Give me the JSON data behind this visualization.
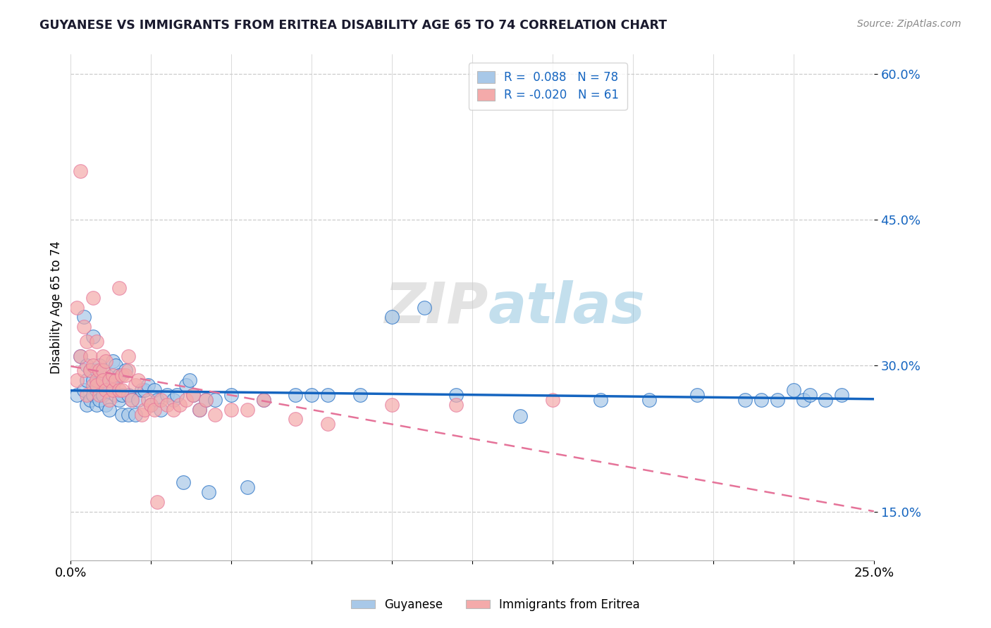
{
  "title": "GUYANESE VS IMMIGRANTS FROM ERITREA DISABILITY AGE 65 TO 74 CORRELATION CHART",
  "source_text": "Source: ZipAtlas.com",
  "ylabel": "Disability Age 65 to 74",
  "xlim": [
    0.0,
    0.25
  ],
  "ylim": [
    0.1,
    0.62
  ],
  "xticks": [
    0.0,
    0.025,
    0.05,
    0.075,
    0.1,
    0.125,
    0.15,
    0.175,
    0.2,
    0.225,
    0.25
  ],
  "yticks": [
    0.15,
    0.3,
    0.45,
    0.6
  ],
  "ytick_labels": [
    "15.0%",
    "30.0%",
    "45.0%",
    "60.0%"
  ],
  "xtick_labels": [
    "0.0%",
    "",
    "",
    "",
    "",
    "",
    "",
    "",
    "",
    "",
    "25.0%"
  ],
  "blue_color": "#a8c8e8",
  "pink_color": "#f4aaaa",
  "blue_line_color": "#1565C0",
  "pink_line_color": "#E57399",
  "R_blue": 0.088,
  "N_blue": 78,
  "R_pink": -0.02,
  "N_pink": 61,
  "watermark_zip": "ZIP",
  "watermark_atlas": "atlas",
  "legend_label_blue": "Guyanese",
  "legend_label_pink": "Immigrants from Eritrea",
  "blue_scatter_x": [
    0.002,
    0.003,
    0.004,
    0.004,
    0.005,
    0.005,
    0.005,
    0.006,
    0.006,
    0.007,
    0.007,
    0.007,
    0.008,
    0.008,
    0.008,
    0.009,
    0.009,
    0.01,
    0.01,
    0.01,
    0.011,
    0.011,
    0.012,
    0.012,
    0.013,
    0.013,
    0.014,
    0.014,
    0.015,
    0.015,
    0.016,
    0.016,
    0.017,
    0.018,
    0.018,
    0.019,
    0.02,
    0.021,
    0.022,
    0.023,
    0.024,
    0.025,
    0.026,
    0.027,
    0.028,
    0.03,
    0.032,
    0.033,
    0.035,
    0.036,
    0.037,
    0.038,
    0.04,
    0.042,
    0.043,
    0.045,
    0.05,
    0.055,
    0.06,
    0.07,
    0.075,
    0.08,
    0.09,
    0.1,
    0.11,
    0.12,
    0.14,
    0.165,
    0.18,
    0.195,
    0.21,
    0.215,
    0.22,
    0.225,
    0.228,
    0.23,
    0.235,
    0.24
  ],
  "blue_scatter_y": [
    0.27,
    0.31,
    0.275,
    0.35,
    0.26,
    0.285,
    0.3,
    0.265,
    0.295,
    0.27,
    0.285,
    0.33,
    0.26,
    0.275,
    0.295,
    0.265,
    0.3,
    0.27,
    0.285,
    0.295,
    0.26,
    0.28,
    0.255,
    0.285,
    0.28,
    0.305,
    0.27,
    0.3,
    0.265,
    0.29,
    0.25,
    0.27,
    0.295,
    0.25,
    0.27,
    0.265,
    0.25,
    0.265,
    0.275,
    0.275,
    0.28,
    0.26,
    0.275,
    0.265,
    0.255,
    0.27,
    0.265,
    0.27,
    0.18,
    0.28,
    0.285,
    0.27,
    0.255,
    0.265,
    0.17,
    0.265,
    0.27,
    0.175,
    0.265,
    0.27,
    0.27,
    0.27,
    0.27,
    0.35,
    0.36,
    0.27,
    0.248,
    0.265,
    0.265,
    0.27,
    0.265,
    0.265,
    0.265,
    0.275,
    0.265,
    0.27,
    0.265,
    0.27
  ],
  "pink_scatter_x": [
    0.002,
    0.002,
    0.003,
    0.003,
    0.004,
    0.004,
    0.005,
    0.005,
    0.006,
    0.006,
    0.007,
    0.007,
    0.007,
    0.008,
    0.008,
    0.008,
    0.009,
    0.009,
    0.01,
    0.01,
    0.01,
    0.011,
    0.011,
    0.012,
    0.012,
    0.013,
    0.013,
    0.014,
    0.015,
    0.015,
    0.016,
    0.016,
    0.017,
    0.018,
    0.018,
    0.019,
    0.02,
    0.021,
    0.022,
    0.023,
    0.024,
    0.025,
    0.026,
    0.027,
    0.028,
    0.03,
    0.032,
    0.034,
    0.036,
    0.038,
    0.04,
    0.042,
    0.045,
    0.05,
    0.055,
    0.06,
    0.07,
    0.08,
    0.1,
    0.12,
    0.15
  ],
  "pink_scatter_y": [
    0.285,
    0.36,
    0.31,
    0.5,
    0.295,
    0.34,
    0.325,
    0.27,
    0.295,
    0.31,
    0.28,
    0.3,
    0.37,
    0.285,
    0.325,
    0.28,
    0.27,
    0.295,
    0.295,
    0.285,
    0.31,
    0.275,
    0.305,
    0.265,
    0.285,
    0.275,
    0.29,
    0.285,
    0.275,
    0.38,
    0.275,
    0.29,
    0.29,
    0.295,
    0.31,
    0.265,
    0.28,
    0.285,
    0.25,
    0.255,
    0.265,
    0.26,
    0.255,
    0.16,
    0.265,
    0.26,
    0.255,
    0.26,
    0.265,
    0.27,
    0.255,
    0.265,
    0.25,
    0.255,
    0.255,
    0.265,
    0.245,
    0.24,
    0.26,
    0.26,
    0.265
  ]
}
